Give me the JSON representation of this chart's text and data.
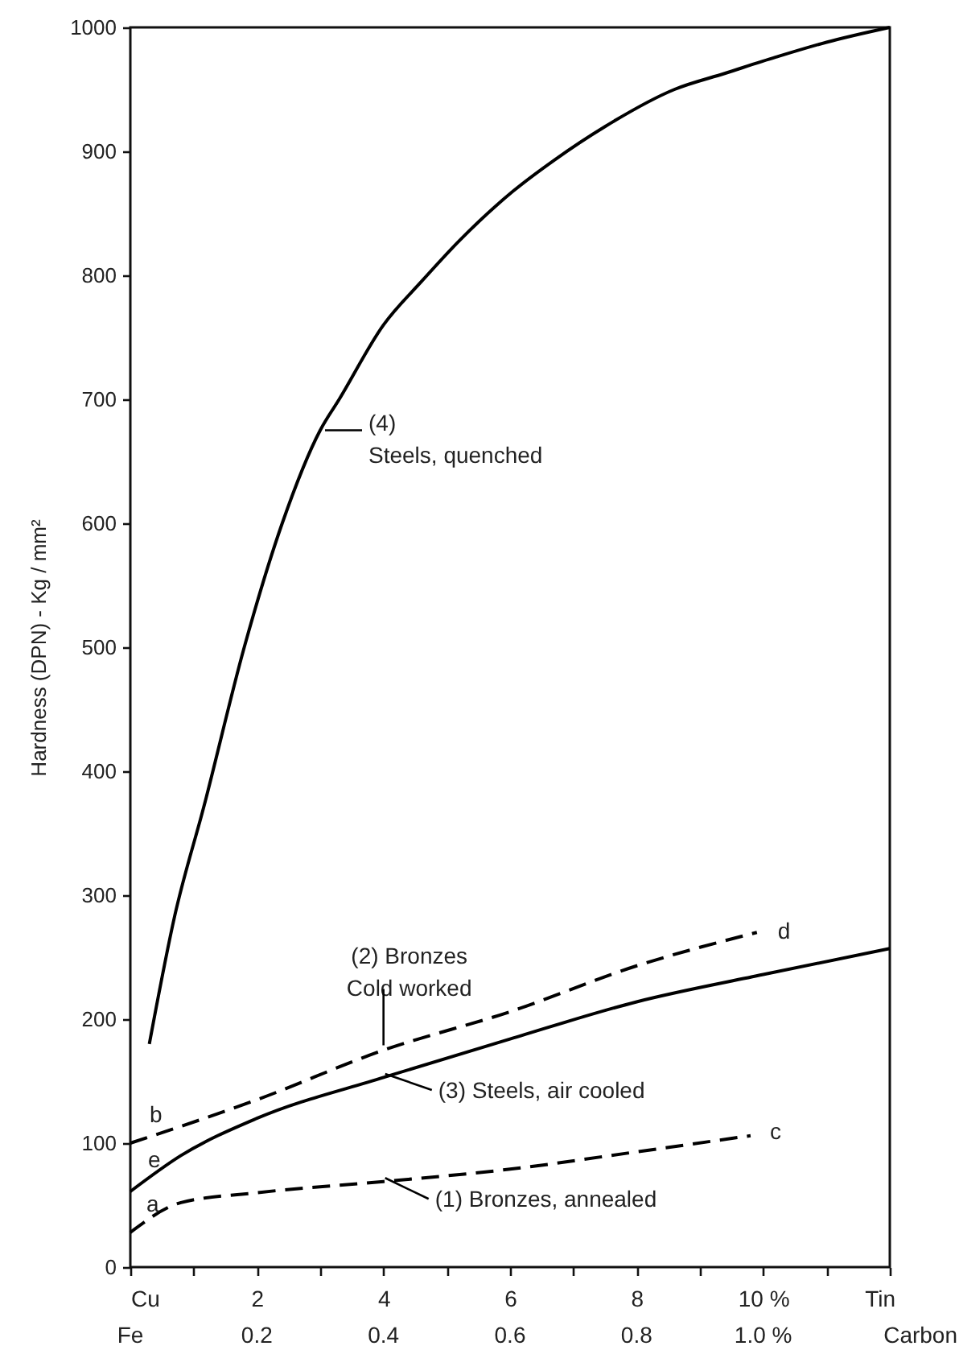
{
  "chart_data": {
    "type": "line",
    "ylabel": "Hardness (DPN) - Kg / mm²",
    "xlabel": "Tin",
    "x2label": "Carbon",
    "xlim": [
      0,
      12
    ],
    "xticks": [
      {
        "value": 0,
        "label": "Cu"
      },
      {
        "value": 1,
        "label": null
      },
      2,
      {
        "value": 3,
        "label": null
      },
      4,
      {
        "value": 5,
        "label": null
      },
      6,
      {
        "value": 7,
        "label": null
      },
      8,
      {
        "value": 9,
        "label": null
      },
      {
        "value": 10,
        "label": "10 %"
      },
      {
        "value": 11,
        "label": null
      },
      {
        "value": 12,
        "label": null
      }
    ],
    "x2lim": [
      0,
      1.2
    ],
    "x2ticks": [
      {
        "value": 0,
        "label": "Fe"
      },
      0.2,
      0.4,
      0.6,
      0.8,
      {
        "value": 1.0,
        "label": "1.0 %"
      }
    ],
    "ylim": [
      0,
      1000
    ],
    "yticks": [
      0,
      100,
      200,
      300,
      400,
      500,
      600,
      700,
      800,
      900,
      1000
    ],
    "grid": false,
    "series": [
      {
        "color": "#000000",
        "line_style": "solid",
        "x": [
          0.3,
          0.7,
          1.17,
          1.8,
          2.4,
          3.0,
          3.3,
          4.0,
          4.6,
          5.2,
          6.05,
          6.7,
          7.5,
          8.6,
          9.4,
          10.2,
          11,
          12
        ],
        "values": [
          180,
          283,
          373,
          500,
          600,
          675,
          700,
          760,
          795,
          828,
          868,
          893,
          920,
          950,
          963,
          976,
          988,
          1000
        ]
      },
      {
        "color": "#000000",
        "line_style": "solid",
        "x": [
          0,
          0.8,
          2,
          4,
          6,
          8,
          10,
          12
        ],
        "values": [
          61,
          90,
          120,
          153,
          184,
          214,
          236,
          257
        ]
      },
      {
        "color": "#000000",
        "line_style": "dashed",
        "x": [
          0,
          2,
          4,
          6,
          8,
          9.9
        ],
        "values": [
          100,
          135,
          175,
          206,
          243,
          270
        ]
      },
      {
        "color": "#000000",
        "line_style": "dashed",
        "x": [
          0,
          0.8,
          2,
          4,
          6,
          8,
          9.8
        ],
        "values": [
          28,
          52,
          60,
          69,
          79,
          93,
          106
        ]
      }
    ],
    "annotations": [
      {
        "text": "(4)\nSteels, quenched",
        "x": 3.0,
        "y": 675
      },
      {
        "text": "(2)  Bronzes\nCold worked",
        "x": 4,
        "y": 175
      },
      {
        "text": "(3)  Steels, air cooled",
        "x": 3.95,
        "y": 152
      },
      {
        "text": "(1)  Bronzes, annealed",
        "x": 3.95,
        "y": 68
      },
      {
        "text": "a",
        "x": 0,
        "y": 28
      },
      {
        "text": "b",
        "x": 0,
        "y": 100
      },
      {
        "text": "e",
        "x": 0,
        "y": 61
      },
      {
        "text": "c",
        "x": 9.8,
        "y": 106
      },
      {
        "text": "d",
        "x": 9.9,
        "y": 270
      }
    ]
  }
}
